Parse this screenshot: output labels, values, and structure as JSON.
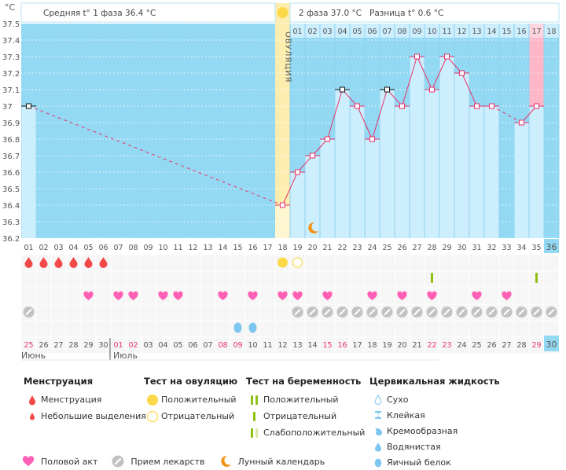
{
  "header": {
    "unit": "°C",
    "phase1_text": "Средняя t° 1 фаза 36.4 °C",
    "phase2_text": "2 фаза 37.0 °C",
    "diff_text": "Разница t° 0.6 °C",
    "ovulation_label": "ОВУЛЯЦИЯ"
  },
  "colors": {
    "chart_bg": "#93d9f3",
    "bar_fill": "#cdeefc",
    "ovulation_band": "#fdeeb0",
    "line": "#e8336b",
    "highlight_pink": "#ffb6c8",
    "menstruation": "#f24848",
    "heart": "#ff5fb4",
    "pill": "#c2c2c2",
    "ov_positive": "#fcd94a",
    "pregnancy_test": "#8fbf12",
    "fluid": "#7cc6f0",
    "moon": "#f39417",
    "weekend_red": "#e8336b"
  },
  "chart_data": {
    "type": "line",
    "title": "",
    "xlabel": "",
    "ylabel": "°C",
    "ylim": [
      36.2,
      37.5
    ],
    "yticks": [
      "37.5",
      "37.4",
      "37.3",
      "37.2",
      "37.1",
      "37",
      "36.9",
      "36.8",
      "36.7",
      "36.6",
      "36.5",
      "36.4",
      "36.3",
      "36.2"
    ],
    "cycle_days": [
      "01",
      "02",
      "03",
      "04",
      "05",
      "06",
      "07",
      "08",
      "09",
      "10",
      "11",
      "12",
      "13",
      "14",
      "15",
      "16",
      "17",
      "18",
      "19",
      "20",
      "21",
      "22",
      "23",
      "24",
      "25",
      "26",
      "27",
      "28",
      "29",
      "30",
      "31",
      "32",
      "33",
      "34",
      "35",
      "36"
    ],
    "phase2_days": [
      "01",
      "02",
      "03",
      "04",
      "05",
      "06",
      "07",
      "08",
      "09",
      "10",
      "11",
      "12",
      "13",
      "14",
      "15",
      "16",
      "17",
      "18"
    ],
    "temperatures": [
      37.0,
      null,
      null,
      null,
      null,
      null,
      null,
      null,
      null,
      null,
      null,
      null,
      null,
      null,
      null,
      null,
      null,
      36.4,
      36.6,
      36.7,
      36.8,
      37.1,
      37.0,
      36.8,
      37.1,
      37.0,
      37.3,
      37.1,
      37.3,
      37.2,
      37.0,
      37.0,
      null,
      36.9,
      37.0,
      null
    ],
    "black_markers": [
      1,
      22,
      25
    ],
    "ovulation_day": 18,
    "highlight_day": 35,
    "current_day": 36,
    "moon_day": 20,
    "calendar_dates": [
      "25",
      "26",
      "27",
      "28",
      "29",
      "30",
      "01",
      "02",
      "03",
      "04",
      "05",
      "06",
      "07",
      "08",
      "09",
      "10",
      "11",
      "12",
      "13",
      "14",
      "15",
      "16",
      "17",
      "18",
      "19",
      "20",
      "21",
      "22",
      "23",
      "24",
      "25",
      "26",
      "27",
      "28",
      "29",
      "30"
    ],
    "red_dates": [
      1,
      7,
      8,
      14,
      15,
      21,
      22,
      28,
      29,
      35
    ],
    "months": [
      "Июнь",
      "Июль"
    ],
    "rows": {
      "menstruation": [
        1,
        2,
        3,
        4,
        5,
        6
      ],
      "ovulation_test_positive": [
        18
      ],
      "ovulation_test_negative": [
        19
      ],
      "pregnancy_test_negative": [
        28,
        35
      ],
      "intercourse": [
        5,
        7,
        8,
        10,
        11,
        14,
        16,
        18,
        19,
        21,
        24,
        26,
        28,
        31,
        33
      ],
      "medication": [
        1,
        19,
        20,
        21,
        22,
        23,
        24,
        25,
        26,
        27,
        28,
        29,
        30,
        31,
        32,
        33,
        34,
        35,
        36
      ],
      "cervical_egg_white": [
        15,
        16
      ]
    }
  },
  "legend": {
    "menstruation": {
      "title": "Менструация",
      "items": [
        "Менструация",
        "Небольшие выделения"
      ]
    },
    "ovulation_test": {
      "title": "Тест на овуляцию",
      "items": [
        "Положительный",
        "Отрицательный"
      ]
    },
    "pregnancy_test": {
      "title": "Тест на беременность",
      "items": [
        "Положительный",
        "Отрицательный",
        "Слабоположительный"
      ]
    },
    "cervical_fluid": {
      "title": "Цервикальная жидкость",
      "items": [
        "Сухо",
        "Клейкая",
        "Кремообразная",
        "Водянистая",
        "Яичный белок"
      ]
    },
    "bottom": [
      "Половой акт",
      "Прием лекарств",
      "Лунный календарь"
    ]
  }
}
